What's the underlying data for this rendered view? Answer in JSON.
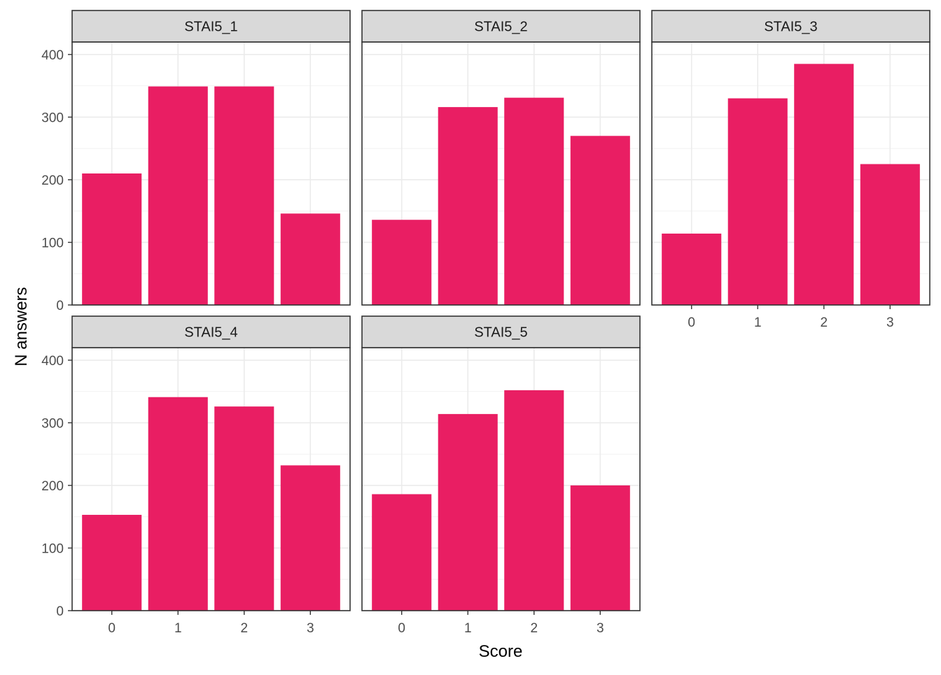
{
  "chart_data": {
    "type": "bar",
    "layout": "faceted 2x3 grid (5 panels), shared axes",
    "xlabel": "Score",
    "ylabel": "N answers",
    "categories": [
      "0",
      "1",
      "2",
      "3"
    ],
    "ylim": [
      0,
      420
    ],
    "yticks": [
      "0",
      "100",
      "200",
      "300",
      "400"
    ],
    "grid": true,
    "bar_color": "#E91E63",
    "strip_fill": "#D9D9D9",
    "panels": [
      {
        "name": "STAI5_1",
        "values": [
          210,
          349,
          349,
          146
        ]
      },
      {
        "name": "STAI5_2",
        "values": [
          136,
          316,
          331,
          270
        ]
      },
      {
        "name": "STAI5_3",
        "values": [
          114,
          330,
          385,
          225
        ]
      },
      {
        "name": "STAI5_4",
        "values": [
          153,
          341,
          326,
          232
        ]
      },
      {
        "name": "STAI5_5",
        "values": [
          186,
          314,
          352,
          200
        ]
      }
    ]
  }
}
